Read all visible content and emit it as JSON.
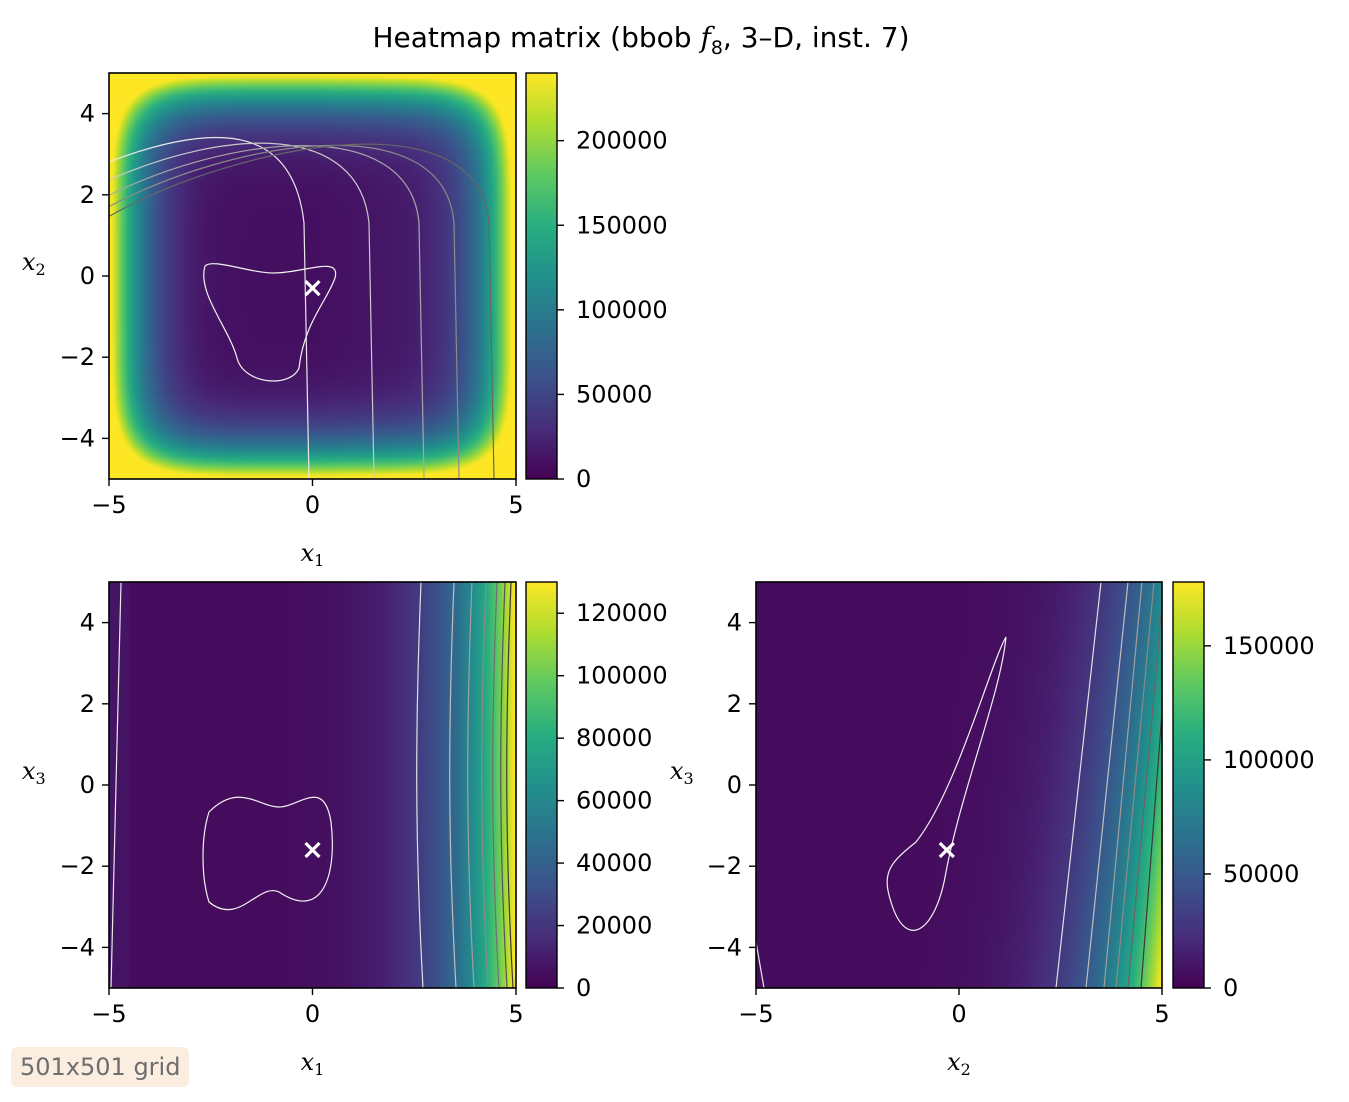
{
  "figure": {
    "title_prefix": "Heatmap matrix (bbob ",
    "title_function": "f",
    "title_subscript": "8",
    "title_suffix": ", 3–D, inst. 7)",
    "grid_note": "501x501 grid"
  },
  "colors": {
    "colormap": "viridis",
    "minimum_marker": "#ffffff",
    "axes_frame": "#000000"
  },
  "chart_data": [
    {
      "type": "heatmap",
      "name": "x1-x2 panel",
      "xlabel": "x",
      "xlabel_sub": "1",
      "ylabel": "x",
      "ylabel_sub": "2",
      "xlim": [
        -5,
        5
      ],
      "ylim": [
        -5,
        5
      ],
      "xticks": [
        -5,
        0,
        5
      ],
      "yticks": [
        -4,
        -2,
        0,
        2,
        4
      ],
      "xtick_labels": [
        "−5",
        "0",
        "5"
      ],
      "ytick_labels": [
        "−4",
        "−2",
        "0",
        "2",
        "4"
      ],
      "colorbar_range": [
        0,
        240000
      ],
      "colorbar_ticks": [
        0,
        50000,
        100000,
        150000,
        200000
      ],
      "colorbar_tick_labels": [
        "0",
        "50000",
        "100000",
        "150000",
        "200000"
      ],
      "minimum": {
        "x": 0,
        "y": -0.3
      },
      "contour_levels": 5
    },
    {
      "type": "heatmap",
      "name": "x1-x3 panel",
      "xlabel": "x",
      "xlabel_sub": "1",
      "ylabel": "x",
      "ylabel_sub": "3",
      "xlim": [
        -5,
        5
      ],
      "ylim": [
        -5,
        5
      ],
      "xticks": [
        -5,
        0,
        5
      ],
      "yticks": [
        -4,
        -2,
        0,
        2,
        4
      ],
      "xtick_labels": [
        "−5",
        "0",
        "5"
      ],
      "ytick_labels": [
        "−4",
        "−2",
        "0",
        "2",
        "4"
      ],
      "colorbar_range": [
        0,
        130000
      ],
      "colorbar_ticks": [
        0,
        20000,
        40000,
        60000,
        80000,
        100000,
        120000
      ],
      "colorbar_tick_labels": [
        "0",
        "20000",
        "40000",
        "60000",
        "80000",
        "100000",
        "120000"
      ],
      "minimum": {
        "x": 0,
        "y": -1.6
      },
      "contour_levels": 7
    },
    {
      "type": "heatmap",
      "name": "x2-x3 panel",
      "xlabel": "x",
      "xlabel_sub": "2",
      "ylabel": "x",
      "ylabel_sub": "3",
      "xlim": [
        -5,
        5
      ],
      "ylim": [
        -5,
        5
      ],
      "xticks": [
        -5,
        0,
        5
      ],
      "yticks": [
        -4,
        -2,
        0,
        2,
        4
      ],
      "xtick_labels": [
        "−5",
        "0",
        "5"
      ],
      "ytick_labels": [
        "−4",
        "−2",
        "0",
        "2",
        "4"
      ],
      "colorbar_range": [
        0,
        178000
      ],
      "colorbar_ticks": [
        0,
        50000,
        100000,
        150000
      ],
      "colorbar_tick_labels": [
        "0",
        "50000",
        "100000",
        "150000"
      ],
      "minimum": {
        "x": -0.3,
        "y": -1.6
      },
      "contour_levels": 6
    }
  ]
}
